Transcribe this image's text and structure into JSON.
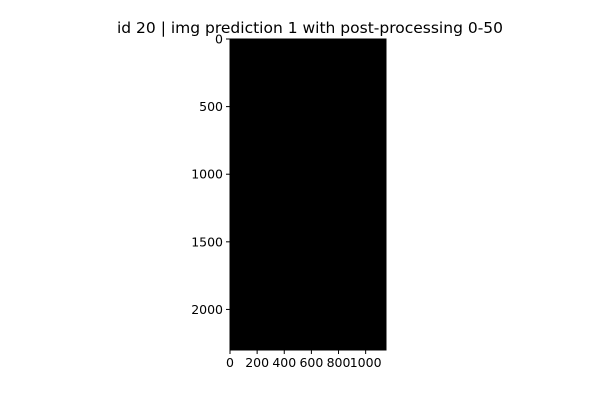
{
  "chart_data": {
    "type": "heatmap",
    "title": "id 20 | img prediction 1 with post-processing 0-50",
    "xlabel": "",
    "ylabel": "",
    "xlim": [
      0,
      1150
    ],
    "ylim": [
      2300,
      0
    ],
    "x_ticks": [
      0,
      200,
      400,
      600,
      800,
      1000
    ],
    "x_tick_labels": [
      "0",
      "200",
      "400",
      "600",
      "800",
      "1000"
    ],
    "y_ticks": [
      0,
      500,
      1000,
      1500,
      2000
    ],
    "y_tick_labels": [
      "0",
      "500",
      "1000",
      "1500",
      "2000"
    ],
    "image_value": 0,
    "image_color": "#000000",
    "grid": false,
    "legend": "none"
  }
}
